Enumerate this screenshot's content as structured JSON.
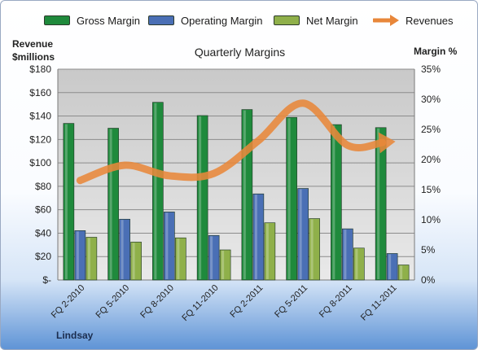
{
  "chart_data": {
    "type": "bar",
    "title": "Quarterly Margins",
    "ylabel_left": [
      "Revenue",
      "$millions"
    ],
    "ylabel_right": "Margin %",
    "categories": [
      "FQ 2-2010",
      "FQ 5-2010",
      "FQ 8-2010",
      "FQ 11-2010",
      "FQ 2-2011",
      "FQ 5-2011",
      "FQ 8-2011",
      "FQ 11-2011"
    ],
    "left_axis": {
      "min": 0,
      "max": 180,
      "step": 20,
      "tick_labels": [
        "$-",
        "$20",
        "$40",
        "$60",
        "$80",
        "$100",
        "$120",
        "$140",
        "$160",
        "$180"
      ]
    },
    "right_axis": {
      "min": 0,
      "max": 35,
      "step": 5,
      "tick_labels": [
        "0%",
        "5%",
        "10%",
        "15%",
        "20%",
        "25%",
        "30%",
        "35%"
      ]
    },
    "series": [
      {
        "name": "Gross Margin",
        "kind": "bar",
        "axis": "right",
        "color": "#1f8a3c",
        "values": [
          26.0,
          25.2,
          29.5,
          27.3,
          28.3,
          27.0,
          25.8,
          25.3
        ]
      },
      {
        "name": "Operating Margin",
        "kind": "bar",
        "axis": "right",
        "color": "#4a6fb5",
        "values": [
          8.2,
          10.1,
          11.3,
          7.4,
          14.3,
          15.2,
          8.5,
          4.4
        ]
      },
      {
        "name": "Net Margin",
        "kind": "bar",
        "axis": "right",
        "color": "#8fb04a",
        "values": [
          7.1,
          6.3,
          7.0,
          5.0,
          9.5,
          10.2,
          5.3,
          2.5
        ]
      },
      {
        "name": "Revenues",
        "kind": "line",
        "axis": "left",
        "color": "#e8873a",
        "values": [
          85,
          98,
          89,
          91,
          119,
          151,
          115,
          118
        ]
      }
    ],
    "legend": "top",
    "grid": true
  },
  "signature": "Lindsay"
}
